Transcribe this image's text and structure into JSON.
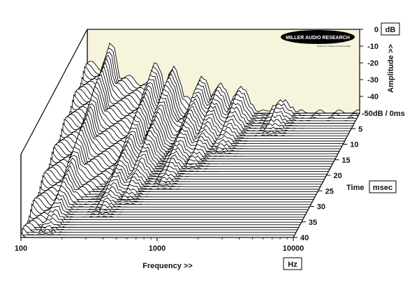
{
  "logo": {
    "name": "MILLER AUDIO RESEARCH",
    "tagline": "testing the measure of sound quality"
  },
  "colors": {
    "back_wall": "#f7f4dc",
    "trace_stroke": "#000000",
    "trace_fill": "#ffffff",
    "axis": "#000000"
  },
  "chart_data": {
    "type": "waterfall",
    "title": "",
    "x_axis": {
      "label": "Frequency >>",
      "unit": "Hz",
      "scale": "log",
      "range": [
        100,
        10000
      ],
      "ticks": [
        {
          "value": 100,
          "label": "100"
        },
        {
          "value": 1000,
          "label": "1000"
        },
        {
          "value": 10000,
          "label": "10000"
        }
      ]
    },
    "y_axis": {
      "label": "Amplitude >>",
      "unit": "dB",
      "range": [
        -50,
        0
      ],
      "ticks": [
        {
          "value": 0,
          "label": "0"
        },
        {
          "value": -10,
          "label": "-10"
        },
        {
          "value": -20,
          "label": "-20"
        },
        {
          "value": -30,
          "label": "-30"
        },
        {
          "value": -40,
          "label": "-40"
        }
      ],
      "floor_label": "-50dB / 0ms"
    },
    "z_axis": {
      "label": "Time",
      "unit": "msec",
      "range": [
        0,
        40
      ],
      "ticks": [
        {
          "value": 5,
          "label": "5"
        },
        {
          "value": 10,
          "label": "10"
        },
        {
          "value": 15,
          "label": "15"
        },
        {
          "value": 20,
          "label": "20"
        },
        {
          "value": 25,
          "label": "25"
        },
        {
          "value": 30,
          "label": "30"
        },
        {
          "value": 35,
          "label": "35"
        },
        {
          "value": 40,
          "label": "40"
        }
      ]
    },
    "slice_count": 50,
    "resonances": [
      {
        "freq_hz": 150,
        "level_db": -8,
        "decay_ms": 40
      },
      {
        "freq_hz": 320,
        "level_db": -20,
        "decay_ms": 34
      },
      {
        "freq_hz": 430,
        "level_db": -22,
        "decay_ms": 30
      },
      {
        "freq_hz": 700,
        "level_db": -28,
        "decay_ms": 25
      },
      {
        "freq_hz": 950,
        "level_db": -32,
        "decay_ms": 19
      },
      {
        "freq_hz": 1350,
        "level_db": -34,
        "decay_ms": 14
      },
      {
        "freq_hz": 2700,
        "level_db": -42,
        "decay_ms": 8
      }
    ]
  }
}
